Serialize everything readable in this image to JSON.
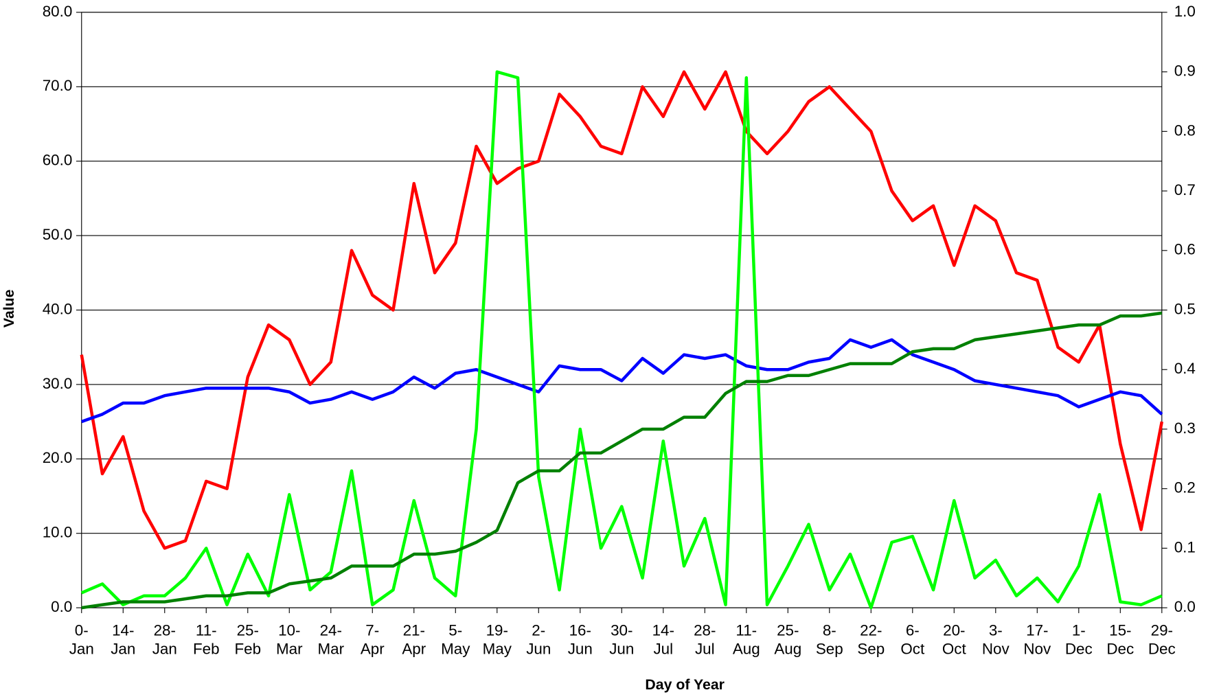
{
  "chart_data": {
    "type": "line",
    "x_label": "Day of Year",
    "y_label": "Value",
    "x": [
      0,
      7,
      14,
      21,
      28,
      35,
      42,
      49,
      56,
      63,
      70,
      77,
      84,
      91,
      98,
      105,
      112,
      119,
      126,
      133,
      140,
      147,
      154,
      161,
      168,
      175,
      182,
      189,
      196,
      203,
      210,
      217,
      224,
      231,
      238,
      245,
      252,
      259,
      266,
      273,
      280,
      287,
      294,
      301,
      308,
      315,
      322,
      329,
      336,
      343,
      350,
      357,
      364
    ],
    "xlim": [
      0,
      364
    ],
    "xticks": [
      {
        "value": 0,
        "label": "0-Jan"
      },
      {
        "value": 14,
        "label": "14-Jan"
      },
      {
        "value": 28,
        "label": "28-Jan"
      },
      {
        "value": 42,
        "label": "11-Feb"
      },
      {
        "value": 56,
        "label": "25-Feb"
      },
      {
        "value": 70,
        "label": "10-Mar"
      },
      {
        "value": 84,
        "label": "24-Mar"
      },
      {
        "value": 98,
        "label": "7-Apr"
      },
      {
        "value": 112,
        "label": "21-Apr"
      },
      {
        "value": 126,
        "label": "5-May"
      },
      {
        "value": 140,
        "label": "19-May"
      },
      {
        "value": 154,
        "label": "2-Jun"
      },
      {
        "value": 168,
        "label": "16-Jun"
      },
      {
        "value": 182,
        "label": "30-Jun"
      },
      {
        "value": 196,
        "label": "14-Jul"
      },
      {
        "value": 210,
        "label": "28-Jul"
      },
      {
        "value": 224,
        "label": "11-Aug"
      },
      {
        "value": 238,
        "label": "25-Aug"
      },
      {
        "value": 252,
        "label": "8-Sep"
      },
      {
        "value": 266,
        "label": "22-Sep"
      },
      {
        "value": 280,
        "label": "6-Oct"
      },
      {
        "value": 294,
        "label": "20-Oct"
      },
      {
        "value": 308,
        "label": "3-Nov"
      },
      {
        "value": 322,
        "label": "17-Nov"
      },
      {
        "value": 336,
        "label": "1-Dec"
      },
      {
        "value": 350,
        "label": "15-Dec"
      },
      {
        "value": 364,
        "label": "29-Dec"
      }
    ],
    "ylim": [
      0,
      80
    ],
    "yticks": [
      {
        "value": 0,
        "label": "0.0"
      },
      {
        "value": 10,
        "label": "10.0"
      },
      {
        "value": 20,
        "label": "20.0"
      },
      {
        "value": 30,
        "label": "30.0"
      },
      {
        "value": 40,
        "label": "40.0"
      },
      {
        "value": 50,
        "label": "50.0"
      },
      {
        "value": 60,
        "label": "60.0"
      },
      {
        "value": 70,
        "label": "70.0"
      },
      {
        "value": 80,
        "label": "80.0"
      }
    ],
    "y2lim": [
      0,
      1
    ],
    "y2ticks": [
      {
        "value": 0,
        "label": "0.0"
      },
      0.1,
      0.2,
      0.3,
      0.4,
      0.5,
      0.6,
      0.7,
      0.8,
      0.9,
      {
        "value": 1,
        "label": "1.0"
      }
    ],
    "grid": true,
    "series": [
      {
        "color": "#ff0000",
        "values": [
          34,
          18,
          23,
          13,
          8,
          9,
          17,
          16,
          31,
          38,
          36,
          30,
          33,
          48,
          42,
          40,
          57,
          45,
          49,
          62,
          57,
          59,
          60,
          69,
          66,
          62,
          61,
          70,
          66,
          72,
          67,
          72,
          64,
          61,
          64,
          68,
          70,
          67,
          64,
          56,
          52,
          54,
          46,
          54,
          52,
          45,
          44,
          35,
          33,
          38,
          22,
          10.5,
          25
        ]
      },
      {
        "color": "#0000ff",
        "values": [
          25,
          26,
          27.5,
          27.5,
          28.5,
          29,
          29.5,
          29.5,
          29.5,
          29.5,
          29,
          27.5,
          28,
          29,
          28,
          29,
          31,
          29.5,
          31.5,
          32,
          31,
          30,
          29,
          32.5,
          32,
          32,
          30.5,
          33.5,
          31.5,
          34,
          33.5,
          34,
          32.5,
          32,
          32,
          33,
          33.5,
          36,
          35,
          36,
          34,
          33,
          32,
          30.5,
          30,
          29.5,
          29,
          28.5,
          27,
          28,
          29,
          28.5,
          26
        ]
      },
      {
        "color": "#00ff00",
        "axis": "y2",
        "values": [
          0.025,
          0.04,
          0.005,
          0.02,
          0.02,
          0.05,
          0.1,
          0.005,
          0.09,
          0.02,
          0.19,
          0.03,
          0.06,
          0.23,
          0.005,
          0.03,
          0.18,
          0.05,
          0.02,
          0.3,
          0.9,
          0.89,
          0.22,
          0.03,
          0.3,
          0.1,
          0.17,
          0.05,
          0.28,
          0.07,
          0.15,
          0.005,
          0.89,
          0.005,
          0.07,
          0.14,
          0.03,
          0.09,
          0,
          0.11,
          0.12,
          0.03,
          0.18,
          0.05,
          0.08,
          0.02,
          0.05,
          0.01,
          0.07,
          0.19,
          0.01,
          0.005,
          0.02
        ]
      },
      {
        "color": "#008000",
        "axis": "y2",
        "values": [
          0,
          0.005,
          0.01,
          0.01,
          0.01,
          0.015,
          0.02,
          0.02,
          0.025,
          0.025,
          0.04,
          0.045,
          0.05,
          0.07,
          0.07,
          0.07,
          0.09,
          0.09,
          0.095,
          0.11,
          0.13,
          0.21,
          0.23,
          0.23,
          0.26,
          0.26,
          0.28,
          0.3,
          0.3,
          0.32,
          0.32,
          0.36,
          0.38,
          0.38,
          0.39,
          0.39,
          0.4,
          0.41,
          0.41,
          0.41,
          0.43,
          0.435,
          0.435,
          0.45,
          0.455,
          0.46,
          0.465,
          0.47,
          0.475,
          0.475,
          0.49,
          0.49,
          0.495
        ]
      }
    ]
  }
}
